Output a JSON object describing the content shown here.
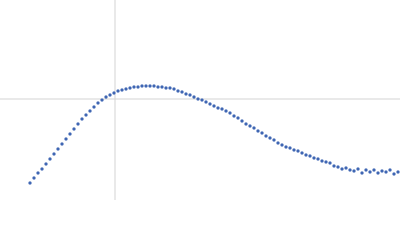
{
  "chart_data": {
    "type": "scatter",
    "color": "#3f66b3",
    "grid": true,
    "xlim": [
      0,
      400
    ],
    "ylim": [
      0,
      200
    ],
    "xticks": [
      115
    ],
    "yticks": [
      101
    ],
    "x": [
      30,
      34,
      38,
      42,
      46,
      50,
      54,
      58,
      62,
      66,
      70,
      74,
      78,
      82,
      86,
      90,
      94,
      98,
      102,
      106,
      110,
      114,
      118,
      122,
      126,
      130,
      134,
      138,
      142,
      146,
      150,
      154,
      158,
      162,
      166,
      170,
      174,
      178,
      182,
      186,
      190,
      194,
      198,
      202,
      206,
      210,
      214,
      218,
      222,
      226,
      230,
      234,
      238,
      242,
      246,
      250,
      254,
      258,
      262,
      266,
      270,
      274,
      278,
      282,
      286,
      290,
      294,
      298,
      302,
      306,
      310,
      314,
      318,
      322,
      326,
      330,
      334,
      338,
      342,
      346,
      350,
      354,
      358,
      362,
      366,
      370,
      374,
      378,
      382,
      386,
      390,
      394,
      398
    ],
    "values": [
      17,
      22,
      27,
      31,
      36,
      41,
      46,
      51,
      56,
      61,
      66,
      71,
      76,
      81,
      85,
      89,
      93,
      97,
      100,
      103,
      105,
      107,
      109,
      110,
      111,
      112,
      113,
      113,
      114,
      114,
      114,
      114,
      113,
      113,
      112,
      112,
      111,
      109,
      108,
      106,
      105,
      103,
      101,
      100,
      98,
      96,
      94,
      92,
      91,
      89,
      87,
      84,
      82,
      79,
      76,
      74,
      72,
      69,
      67,
      64,
      62,
      60,
      57,
      55,
      53,
      52,
      50,
      49,
      47,
      45,
      44,
      42,
      41,
      39,
      38,
      37,
      34,
      33,
      31,
      32,
      30,
      29,
      31,
      27,
      30,
      28,
      30,
      27,
      29,
      28,
      30,
      26,
      28
    ]
  }
}
